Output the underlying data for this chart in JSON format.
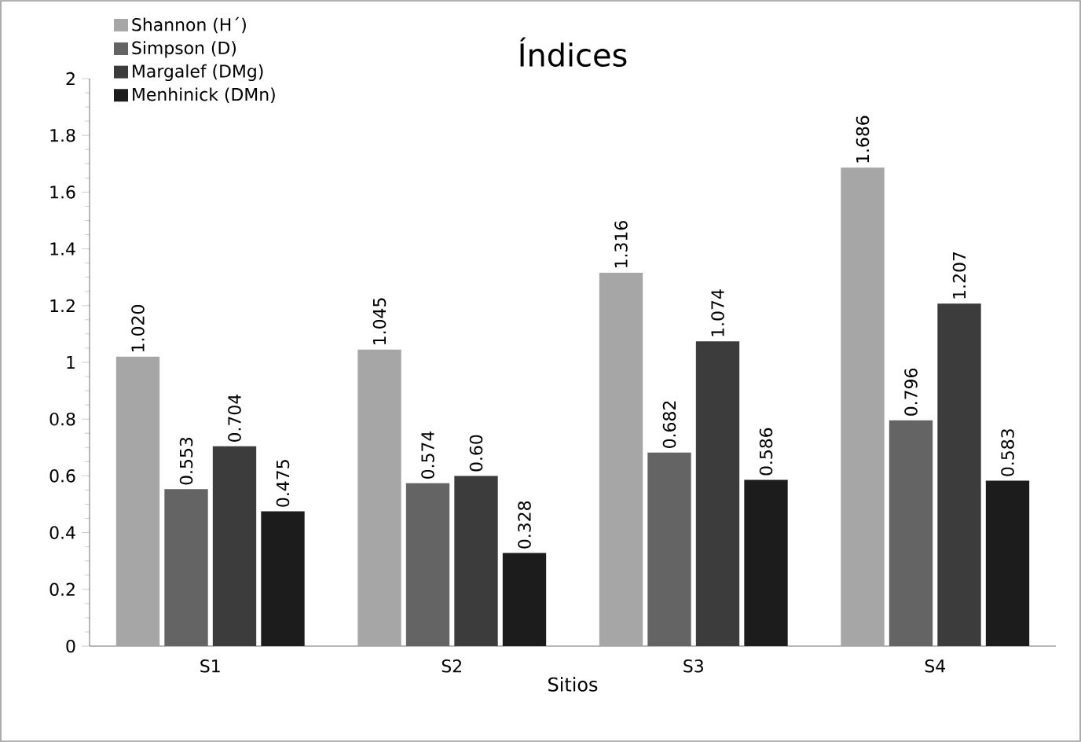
{
  "chart_data": {
    "type": "bar",
    "title": "Índices",
    "xlabel": "Sitios",
    "categories": [
      "S1",
      "S2",
      "S3",
      "S4"
    ],
    "series": [
      {
        "name": "Shannon (H´)",
        "color": "#a6a6a6",
        "values": [
          1.02,
          1.045,
          1.316,
          1.686
        ],
        "value_labels": [
          "1.020",
          "1.045",
          "1.316",
          "1.686"
        ]
      },
      {
        "name": "Simpson (D)",
        "color": "#646464",
        "values": [
          0.553,
          0.574,
          0.682,
          0.796
        ],
        "value_labels": [
          "0.553",
          "0.574",
          "0.682",
          "0.796"
        ]
      },
      {
        "name": "Margalef (DMg)",
        "color": "#3c3c3c",
        "values": [
          0.704,
          0.6,
          1.074,
          1.207
        ],
        "value_labels": [
          "0.704",
          "0.60",
          "1.074",
          "1.207"
        ]
      },
      {
        "name": "Menhinick (DMn)",
        "color": "#1c1c1c",
        "values": [
          0.475,
          0.328,
          0.586,
          0.583
        ],
        "value_labels": [
          "0.475",
          "0.328",
          "0.586",
          "0.583"
        ]
      }
    ],
    "ylim": [
      0,
      2
    ],
    "yticks": [
      0,
      0.2,
      0.4,
      0.6,
      0.8,
      1,
      1.2,
      1.4,
      1.6,
      1.8,
      2
    ],
    "legend": "top left",
    "grid": false
  }
}
